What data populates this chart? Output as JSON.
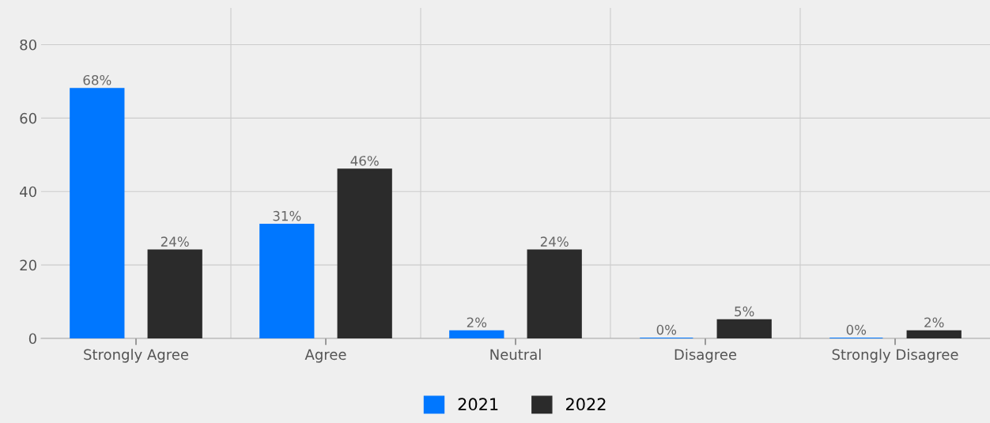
{
  "chart_data": {
    "type": "bar",
    "categories": [
      "Strongly Agree",
      "Agree",
      "Neutral",
      "Disagree",
      "Strongly Disagree"
    ],
    "series": [
      {
        "name": "2021",
        "color": "#0077ff",
        "values": [
          68,
          31,
          2,
          0,
          0
        ],
        "value_labels": [
          "68%",
          "31%",
          "2%",
          "0%",
          "0%"
        ]
      },
      {
        "name": "2022",
        "color": "#2b2b2b",
        "values": [
          24,
          46,
          24,
          5,
          2
        ],
        "value_labels": [
          "24%",
          "46%",
          "24%",
          "5%",
          "2%"
        ]
      }
    ],
    "ylim": [
      0,
      90
    ],
    "yticks": [
      0,
      20,
      40,
      60,
      80
    ],
    "grid": true,
    "legend": "bottom"
  }
}
